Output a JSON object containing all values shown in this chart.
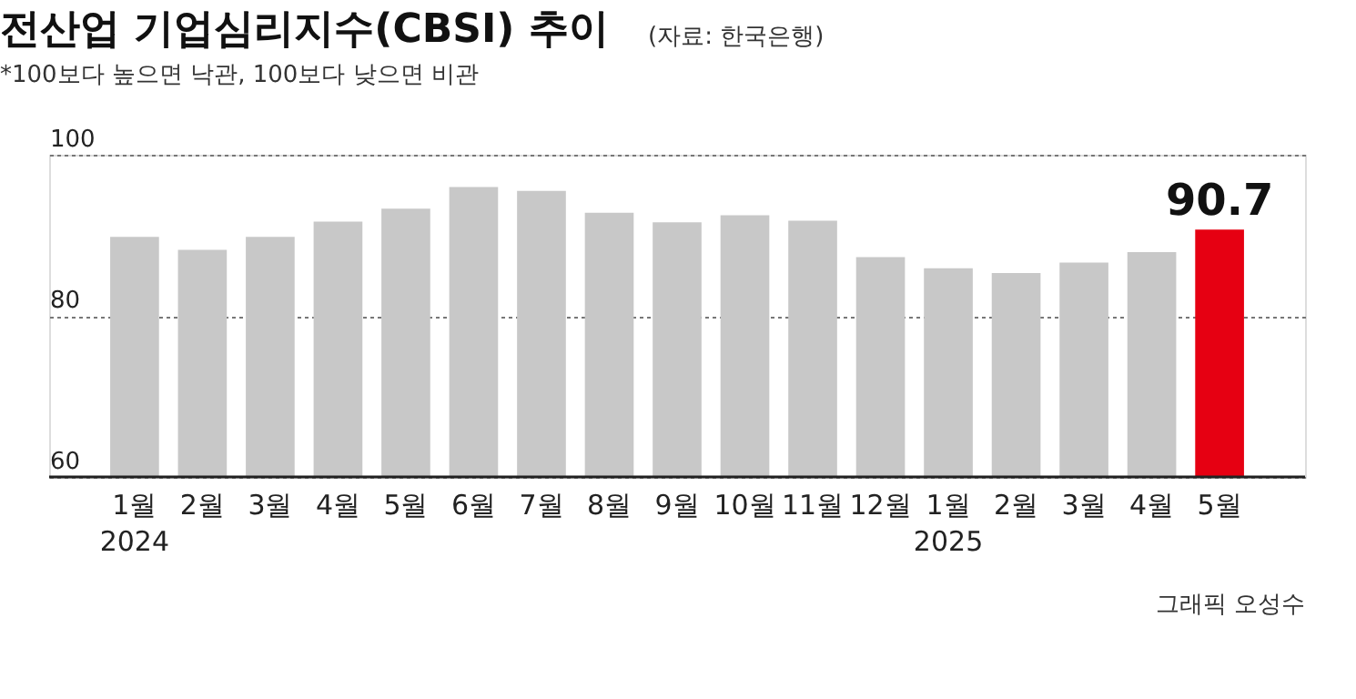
{
  "chart_data": {
    "type": "bar",
    "title": "전산업 기업심리지수(CBSI) 추이",
    "subtitle": "*100보다 높으면 낙관, 100보다 낮으면 비관",
    "annotations": [
      "(자료: 한국은행)",
      "그래픽 오성수"
    ],
    "categories": [
      "1월\n2024",
      "2월",
      "3월",
      "4월",
      "5월",
      "6월",
      "7월",
      "8월",
      "9월",
      "10월",
      "11월",
      "12월",
      "1월\n2025",
      "2월",
      "3월",
      "4월",
      "5월"
    ],
    "values": [
      89.8,
      88.2,
      89.8,
      91.7,
      93.3,
      96.0,
      95.5,
      92.8,
      91.6,
      92.5,
      91.8,
      87.3,
      85.9,
      85.3,
      86.6,
      87.9,
      90.7
    ],
    "colors": [
      "#c8c8c8",
      "#c8c8c8",
      "#c8c8c8",
      "#c8c8c8",
      "#c8c8c8",
      "#c8c8c8",
      "#c8c8c8",
      "#c8c8c8",
      "#c8c8c8",
      "#c8c8c8",
      "#c8c8c8",
      "#c8c8c8",
      "#c8c8c8",
      "#c8c8c8",
      "#c8c8c8",
      "#c8c8c8",
      "#e60012"
    ],
    "value_labels": [
      null,
      null,
      null,
      null,
      null,
      null,
      null,
      null,
      null,
      null,
      null,
      null,
      null,
      null,
      null,
      null,
      "90.7"
    ],
    "ylim": [
      60,
      100
    ],
    "yticks": [
      60,
      80,
      100
    ],
    "grid": "y"
  }
}
